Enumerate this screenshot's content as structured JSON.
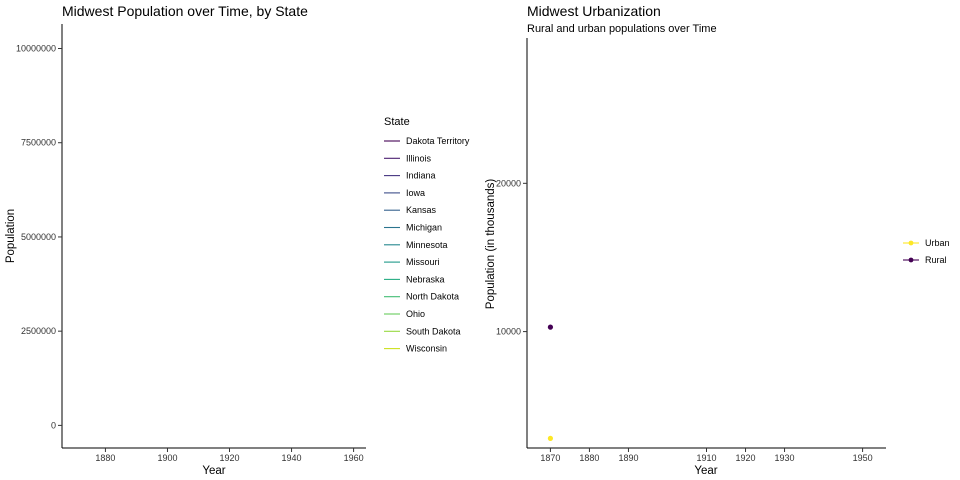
{
  "chart_data": [
    {
      "type": "line",
      "title": "Midwest Population over Time, by State",
      "xlabel": "Year",
      "ylabel": "Population",
      "xlim": [
        1866,
        1964
      ],
      "ylim": [
        -600000,
        10650000
      ],
      "x_ticks": [
        1880,
        1900,
        1920,
        1940,
        1960
      ],
      "x_tick_labels": [
        "1880",
        "1900",
        "1920",
        "1940",
        "1960"
      ],
      "y_ticks": [
        0,
        2500000,
        5000000,
        7500000,
        10000000
      ],
      "y_tick_labels": [
        "0",
        "2500000",
        "5000000",
        "7500000",
        "10000000"
      ],
      "grid": false,
      "legend": {
        "title": "State",
        "position": "right",
        "entries": [
          {
            "label": "Dakota Territory",
            "color": "#440154"
          },
          {
            "label": "Illinois",
            "color": "#481C6E"
          },
          {
            "label": "Indiana",
            "color": "#453581"
          },
          {
            "label": "Iowa",
            "color": "#3D4D8A"
          },
          {
            "label": "Kansas",
            "color": "#34618D"
          },
          {
            "label": "Michigan",
            "color": "#2B748E"
          },
          {
            "label": "Minnesota",
            "color": "#24878E"
          },
          {
            "label": "Missouri",
            "color": "#1F998A"
          },
          {
            "label": "Nebraska",
            "color": "#25AC82"
          },
          {
            "label": "North Dakota",
            "color": "#40BC72"
          },
          {
            "label": "Ohio",
            "color": "#67CC5C"
          },
          {
            "label": "South Dakota",
            "color": "#97D83F"
          },
          {
            "label": "Wisconsin",
            "color": "#CBE11E"
          }
        ]
      },
      "series": []
    },
    {
      "type": "scatter",
      "title": "Midwest Urbanization",
      "subtitle": "Rural and urban populations over Time",
      "xlabel": "Year",
      "ylabel": "Population (in thousands)",
      "xlim": [
        1864,
        1956
      ],
      "ylim": [
        2150,
        29800
      ],
      "x_ticks": [
        1870,
        1880,
        1890,
        1910,
        1920,
        1930,
        1950
      ],
      "x_tick_labels": [
        "1870",
        "1880",
        "1890",
        "1910",
        "1920",
        "1930",
        "1950"
      ],
      "y_ticks": [
        10000,
        20000
      ],
      "y_tick_labels": [
        "10000",
        "20000"
      ],
      "grid": false,
      "legend": {
        "position": "right",
        "entries": [
          {
            "label": "Urban",
            "color": "#FDE725"
          },
          {
            "label": "Rural",
            "color": "#440154"
          }
        ]
      },
      "series": [
        {
          "name": "Urban",
          "color": "#FDE725",
          "points": [
            {
              "x": 1870,
              "y": 2800
            }
          ]
        },
        {
          "name": "Rural",
          "color": "#440154",
          "points": [
            {
              "x": 1870,
              "y": 10300
            }
          ]
        }
      ]
    }
  ]
}
